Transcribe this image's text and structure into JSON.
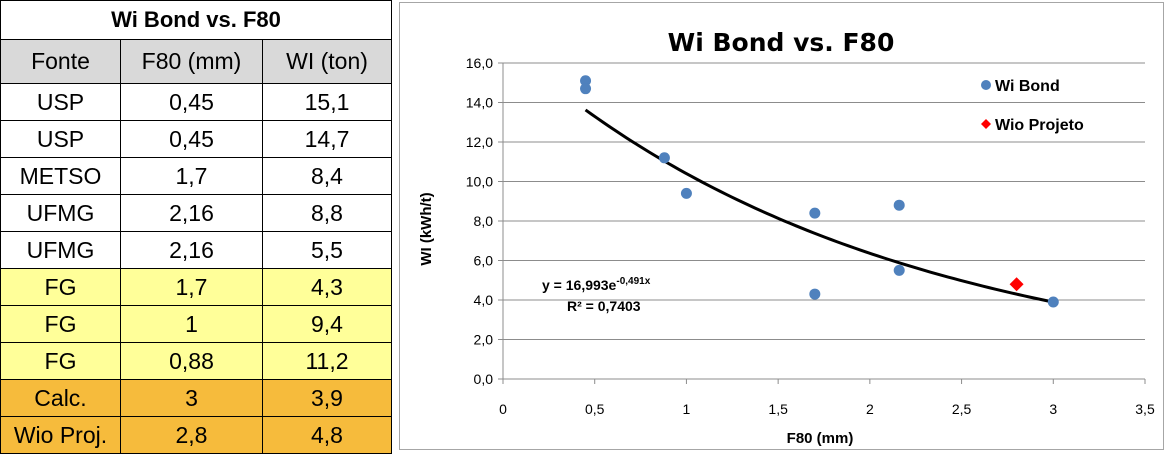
{
  "table": {
    "title": "Wi Bond vs. F80",
    "headers": [
      "Fonte",
      "F80 (mm)",
      "WI (ton)"
    ],
    "rows": [
      {
        "fonte": "USP",
        "f80": "0,45",
        "wi": "15,1",
        "group": "ref"
      },
      {
        "fonte": "USP",
        "f80": "0,45",
        "wi": "14,7",
        "group": "ref"
      },
      {
        "fonte": "METSO",
        "f80": "1,7",
        "wi": "8,4",
        "group": "ref"
      },
      {
        "fonte": "UFMG",
        "f80": "2,16",
        "wi": "8,8",
        "group": "ref"
      },
      {
        "fonte": "UFMG",
        "f80": "2,16",
        "wi": "5,5",
        "group": "ref"
      },
      {
        "fonte": "FG",
        "f80": "1,7",
        "wi": "4,3",
        "group": "fg"
      },
      {
        "fonte": "FG",
        "f80": "1",
        "wi": "9,4",
        "group": "fg"
      },
      {
        "fonte": "FG",
        "f80": "0,88",
        "wi": "11,2",
        "group": "fg"
      },
      {
        "fonte": "Calc.",
        "f80": "3",
        "wi": "3,9",
        "group": "calc"
      },
      {
        "fonte": "Wio Proj.",
        "f80": "2,8",
        "wi": "4,8",
        "group": "calc"
      }
    ],
    "colors": {
      "header": "#d9d9d9",
      "fg": "#ffff99",
      "calc": "#f6bb3c"
    }
  },
  "chart_data": {
    "type": "scatter",
    "title": "Wi Bond vs. F80",
    "xlabel": "F80 (mm)",
    "ylabel": "WI (kWh/t)",
    "xlim": [
      0,
      3.5
    ],
    "ylim": [
      0,
      16
    ],
    "x_ticks": [
      "0",
      "0,5",
      "1",
      "1,5",
      "2",
      "2,5",
      "3",
      "3,5"
    ],
    "y_ticks": [
      "0,0",
      "2,0",
      "4,0",
      "6,0",
      "8,0",
      "10,0",
      "12,0",
      "14,0",
      "16,0"
    ],
    "grid": "horizontal",
    "legend_position": "top-right",
    "series": [
      {
        "name": "Wi Bond",
        "marker": "circle",
        "color": "#4f81bd",
        "points": [
          [
            0.45,
            15.1
          ],
          [
            0.45,
            14.7
          ],
          [
            1.7,
            8.4
          ],
          [
            2.16,
            8.8
          ],
          [
            2.16,
            5.5
          ],
          [
            1.7,
            4.3
          ],
          [
            1.0,
            9.4
          ],
          [
            0.88,
            11.2
          ],
          [
            3.0,
            3.9
          ]
        ]
      },
      {
        "name": "Wio Projeto",
        "marker": "diamond",
        "color": "#ff0000",
        "points": [
          [
            2.8,
            4.8
          ]
        ]
      }
    ],
    "trendline": {
      "type": "exponential",
      "a": 16.993,
      "b": -0.491,
      "x_range": [
        0.45,
        3.0
      ],
      "color": "#000000",
      "equation_prefix": "y = 16,993e",
      "equation_exponent": "-0,491x",
      "r_squared": "R² = 0,7403"
    }
  }
}
